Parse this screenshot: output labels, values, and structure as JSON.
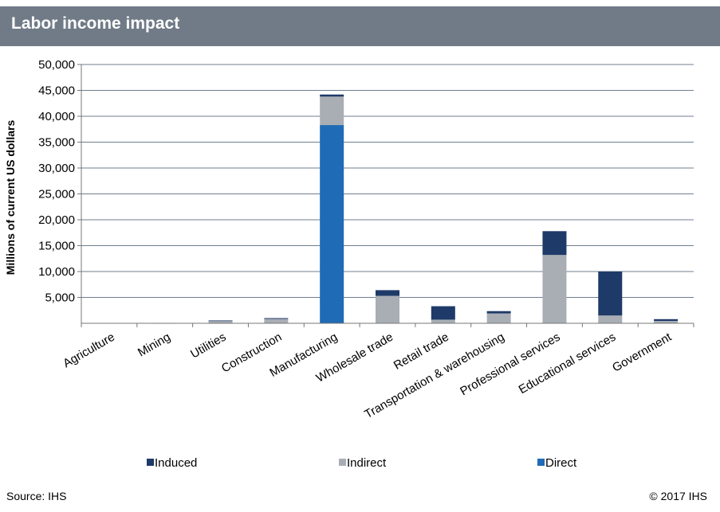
{
  "header": {
    "title": "Labor income impact"
  },
  "footer": {
    "source": "Source: IHS",
    "copyright": "© 2017 IHS"
  },
  "chart_data": {
    "type": "bar",
    "stacked": true,
    "title": "",
    "xlabel": "",
    "ylabel": "Millions of current US dollars",
    "ylim": [
      0,
      50000
    ],
    "yticks": [
      5000,
      10000,
      15000,
      20000,
      25000,
      30000,
      35000,
      40000,
      45000,
      50000
    ],
    "ytick_labels": [
      "5,000",
      "10,000",
      "15,000",
      "20,000",
      "25,000",
      "30,000",
      "35,000",
      "40,000",
      "45,000",
      "50,000"
    ],
    "grid": true,
    "legend_position": "bottom",
    "categories": [
      "Agriculture",
      "Mining",
      "Utilities",
      "Construction",
      "Manufacturing",
      "Wholesale trade",
      "Retail trade",
      "Transportation & warehousing",
      "Professional services",
      "Educational services",
      "Government"
    ],
    "series": [
      {
        "name": "Direct",
        "color": "#1f6bb5",
        "values": [
          0,
          0,
          0,
          0,
          38300,
          0,
          0,
          0,
          0,
          0,
          0
        ]
      },
      {
        "name": "Indirect",
        "color": "#a9aeb5",
        "values": [
          60,
          40,
          450,
          850,
          5500,
          5300,
          700,
          1900,
          13200,
          1500,
          450
        ]
      },
      {
        "name": "Induced",
        "color": "#1e3a68",
        "values": [
          0,
          0,
          100,
          150,
          400,
          1100,
          2600,
          450,
          4600,
          8500,
          350
        ]
      }
    ],
    "legend_order": [
      "Induced",
      "Indirect",
      "Direct"
    ]
  }
}
